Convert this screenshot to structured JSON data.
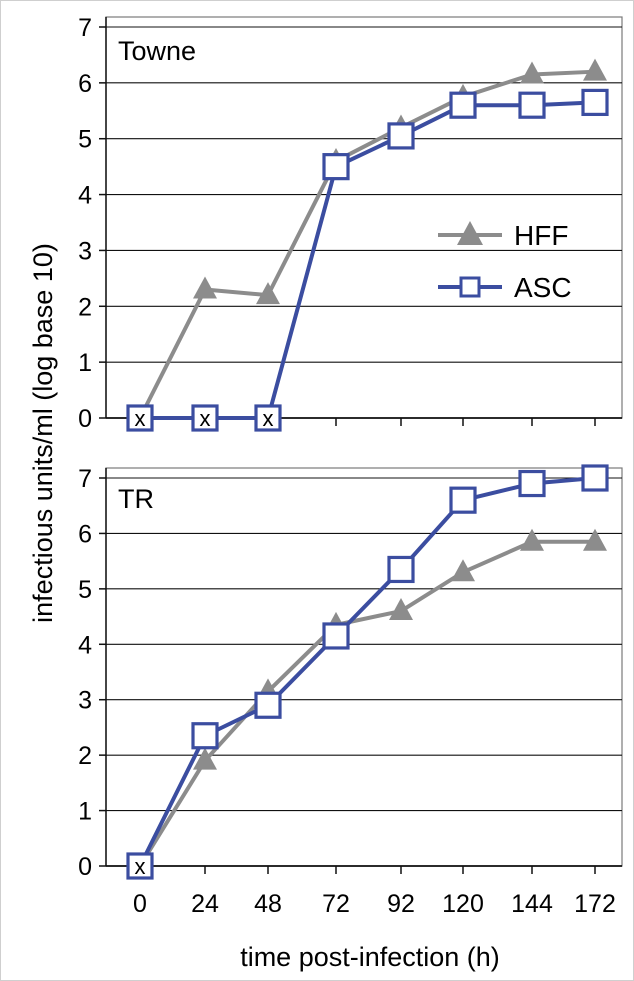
{
  "chart_data": [
    {
      "type": "line",
      "panel_label": "Towne",
      "x": [
        0,
        24,
        48,
        72,
        92,
        120,
        144,
        172
      ],
      "ylim": [
        0,
        7
      ],
      "yticks": [
        0,
        1,
        2,
        3,
        4,
        5,
        6,
        7
      ],
      "grid": true,
      "legend_placement": "right",
      "series": [
        {
          "name": "HFF",
          "color": "#8c8c8c",
          "marker": "triangle",
          "values": [
            0,
            2.3,
            2.2,
            4.6,
            5.2,
            5.75,
            6.15,
            6.2
          ]
        },
        {
          "name": "ASC",
          "color": "#3b4da0",
          "marker": "square",
          "values": [
            0,
            0,
            0,
            4.5,
            5.05,
            5.6,
            5.6,
            5.65
          ]
        }
      ],
      "below_detection_marker": "x",
      "below_detection": [
        {
          "series": "ASC",
          "x": 0
        },
        {
          "series": "ASC",
          "x": 24
        },
        {
          "series": "ASC",
          "x": 48
        }
      ]
    },
    {
      "type": "line",
      "panel_label": "TR",
      "x": [
        0,
        24,
        48,
        72,
        92,
        120,
        144,
        172
      ],
      "xticks": [
        "0",
        "24",
        "48",
        "72",
        "92",
        "120",
        "144",
        "172"
      ],
      "ylim": [
        0,
        7
      ],
      "yticks": [
        0,
        1,
        2,
        3,
        4,
        5,
        6,
        7
      ],
      "grid": true,
      "series": [
        {
          "name": "HFF",
          "color": "#8c8c8c",
          "marker": "triangle",
          "values": [
            0,
            1.9,
            3.15,
            4.35,
            4.6,
            5.3,
            5.85,
            5.85
          ]
        },
        {
          "name": "ASC",
          "color": "#3b4da0",
          "marker": "square",
          "values": [
            0,
            2.35,
            2.9,
            4.15,
            5.35,
            6.6,
            6.9,
            7.0
          ]
        }
      ],
      "below_detection_marker": "x",
      "below_detection": [
        {
          "series": "ASC",
          "x": 0
        }
      ]
    }
  ],
  "ylabel": "infectious units/ml  (log base 10)",
  "xlabel": "time post-infection (h)"
}
